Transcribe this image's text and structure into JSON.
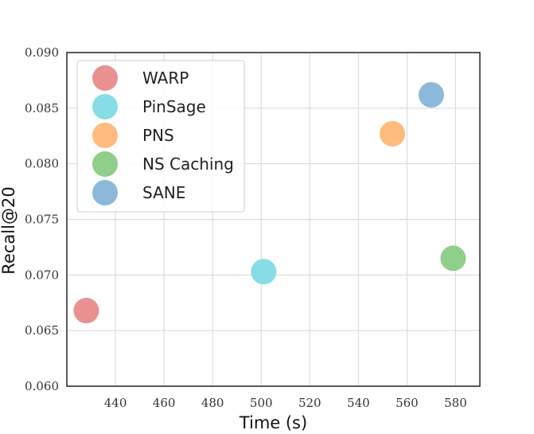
{
  "chart_data": {
    "type": "scatter",
    "title": "",
    "xlabel": "Time (s)",
    "ylabel": "Recall@20",
    "xlim": [
      420,
      590
    ],
    "ylim": [
      0.06,
      0.09
    ],
    "xticks": [
      440,
      460,
      480,
      500,
      520,
      540,
      560,
      580
    ],
    "xtick_labels": [
      "440",
      "460",
      "480",
      "500",
      "520",
      "540",
      "560",
      "580"
    ],
    "yticks": [
      0.06,
      0.065,
      0.07,
      0.075,
      0.08,
      0.085,
      0.09
    ],
    "ytick_labels": [
      "0.060",
      "0.065",
      "0.070",
      "0.075",
      "0.080",
      "0.085",
      "0.090"
    ],
    "grid": true,
    "legend_position": "top-left",
    "series": [
      {
        "name": "WARP",
        "x": 428,
        "y": 0.0668,
        "color": "#e88a8a"
      },
      {
        "name": "PinSage",
        "x": 501,
        "y": 0.0703,
        "color": "#7fdbe4"
      },
      {
        "name": "PNS",
        "x": 554,
        "y": 0.0827,
        "color": "#ffb677"
      },
      {
        "name": "NS Caching",
        "x": 579,
        "y": 0.0715,
        "color": "#8acb85"
      },
      {
        "name": "SANE",
        "x": 570,
        "y": 0.0862,
        "color": "#86b4d8"
      }
    ]
  }
}
